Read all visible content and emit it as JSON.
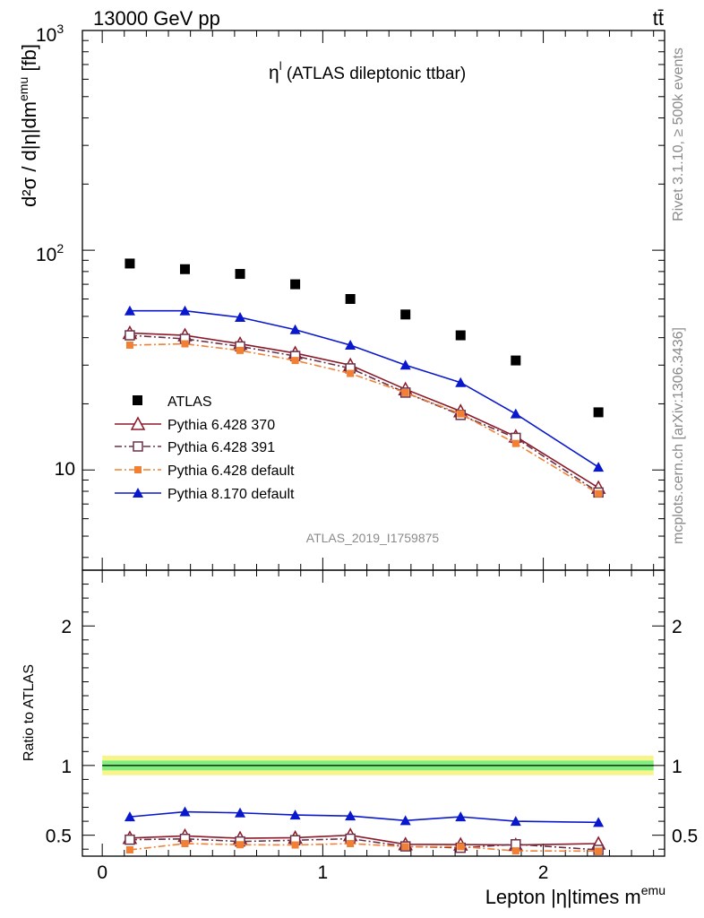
{
  "header": {
    "energy_label": "13000 GeV pp",
    "process_label": "tt̄",
    "plot_title": "η",
    "plot_title_sup": "l",
    "plot_title_rest": " (ATLAS dileptonic ttbar)",
    "analysis_id": "ATLAS_2019_I1759875",
    "rivet_label": "Rivet 3.1.10, ≥ 500k events",
    "mcplots_label": "mcplots.cern.ch [arXiv:1306.3436]"
  },
  "main_panel": {
    "ylabel": "d²σ / d|η|dm",
    "ylabel_sup": "emu",
    "ylabel_unit": " [fb]",
    "yscale": "log",
    "ylim": [
      3.5,
      1000
    ],
    "ytick_labels": {
      "t10": "10",
      "t100": "10",
      "t100_sup": "2",
      "t1000": "10",
      "t1000_sup": "3"
    }
  },
  "ratio_panel": {
    "ylabel": "Ratio to ATLAS",
    "ylim": [
      0.35,
      2.4
    ],
    "ytick_labels": [
      "0.5",
      "1",
      "2"
    ],
    "ytick_values": [
      0.5,
      1,
      2
    ]
  },
  "xaxis": {
    "label": "Lepton |η|times m",
    "label_sup": "emu",
    "xlim": [
      -0.09,
      2.55
    ],
    "tick_labels": [
      "0",
      "1",
      "2"
    ],
    "tick_values": [
      0,
      1,
      2
    ]
  },
  "legend": {
    "atlas": "ATLAS",
    "p370": "Pythia 6.428 370",
    "p391": "Pythia 6.428 391",
    "pdef": "Pythia 6.428 default",
    "p8": "Pythia 8.170 default"
  },
  "colors": {
    "atlas": "#000000",
    "p370": "#8b1a28",
    "p391": "#6b3048",
    "pdef": "#f28034",
    "p8": "#0a18cc",
    "band_inner": "#7ff07f",
    "band_outer": "#f8f48a"
  },
  "chart_data": {
    "type": "line",
    "x": [
      0.125,
      0.375,
      0.625,
      0.875,
      1.125,
      1.375,
      1.625,
      1.875,
      2.25
    ],
    "series": [
      {
        "name": "ATLAS",
        "key": "atlas",
        "marker": "square",
        "values": [
          87,
          82,
          78,
          70,
          60,
          51,
          41,
          31.5,
          18.3
        ]
      },
      {
        "name": "Pythia 6.428 370",
        "key": "p370",
        "marker": "triangle-open",
        "dash": "solid",
        "values": [
          42,
          41,
          37.5,
          34,
          30,
          23.3,
          18.5,
          14.2,
          8.3
        ],
        "ratio": [
          0.48,
          0.495,
          0.478,
          0.482,
          0.5,
          0.435,
          0.433,
          0.43,
          0.44
        ]
      },
      {
        "name": "Pythia 6.428 391",
        "key": "p391",
        "marker": "square-open",
        "dash": "dashdot",
        "values": [
          41,
          39.5,
          36.5,
          33,
          29,
          22.5,
          17.8,
          14,
          7.9
        ],
        "ratio": [
          0.468,
          0.474,
          0.455,
          0.464,
          0.475,
          0.42,
          0.41,
          0.435,
          0.395
        ]
      },
      {
        "name": "Pythia 6.428 default",
        "key": "pdef",
        "marker": "square-small",
        "dash": "dashdot",
        "values": [
          37,
          37.5,
          35,
          31.5,
          27.5,
          22.5,
          18,
          13.2,
          7.8
        ],
        "ratio": [
          0.395,
          0.44,
          0.432,
          0.43,
          0.44,
          0.418,
          0.418,
          0.388,
          0.386
        ]
      },
      {
        "name": "Pythia 8.170 default",
        "key": "p8",
        "marker": "triangle",
        "dash": "solid",
        "values": [
          53,
          53,
          49.5,
          43.5,
          37,
          30,
          25,
          18,
          10.3
        ],
        "ratio": [
          0.632,
          0.668,
          0.66,
          0.645,
          0.638,
          0.605,
          0.632,
          0.6,
          0.592
        ]
      }
    ]
  }
}
